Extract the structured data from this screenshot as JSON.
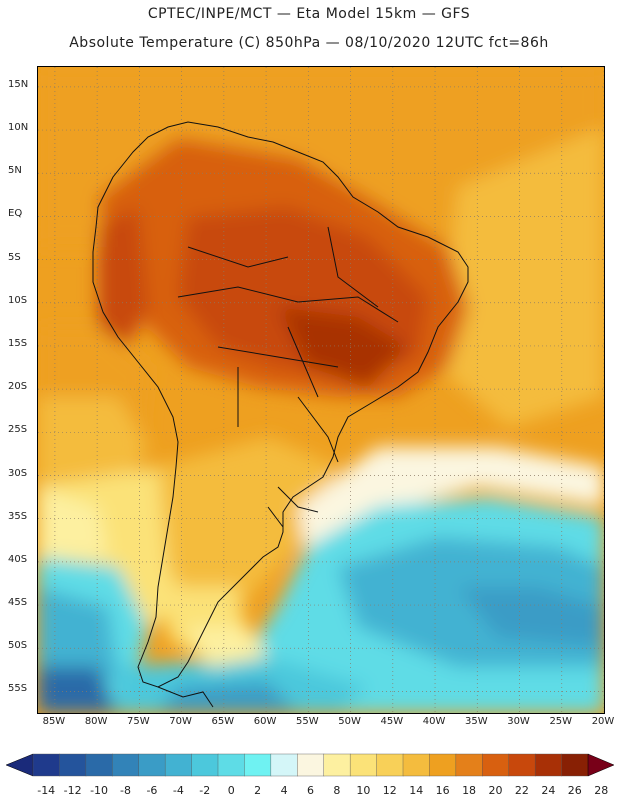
{
  "title": {
    "line1": "CPTEC/INPE/MCT —  Eta Model 15km — GFS",
    "line2": "Absolute Temperature (C) 850hPa — 08/10/2020 12UTC fct=86h"
  },
  "map": {
    "lat_labels": [
      "15N",
      "10N",
      "5N",
      "EQ",
      "5S",
      "10S",
      "15S",
      "20S",
      "25S",
      "30S",
      "35S",
      "40S",
      "45S",
      "50S",
      "55S"
    ],
    "lon_labels": [
      "85W",
      "80W",
      "75W",
      "70W",
      "65W",
      "60W",
      "55W",
      "50W",
      "45W",
      "40W",
      "35W",
      "30W",
      "25W",
      "20W"
    ],
    "lat_values": [
      15,
      10,
      5,
      0,
      -5,
      -10,
      -15,
      -20,
      -25,
      -30,
      -35,
      -40,
      -45,
      -50,
      -55
    ],
    "lon_values": [
      -85,
      -80,
      -75,
      -70,
      -65,
      -60,
      -55,
      -50,
      -45,
      -40,
      -35,
      -30,
      -25,
      -20
    ]
  },
  "colorbar": {
    "labels": [
      "-14",
      "-12",
      "-10",
      "-8",
      "-6",
      "-4",
      "-2",
      "0",
      "2",
      "4",
      "6",
      "8",
      "10",
      "12",
      "14",
      "16",
      "18",
      "20",
      "22",
      "24",
      "26",
      "28"
    ],
    "colors": [
      "#1f3a8c",
      "#24549c",
      "#2a6aa8",
      "#3283b8",
      "#3a9cc6",
      "#42b2d2",
      "#4cc8dc",
      "#5edce6",
      "#6ff2f2",
      "#d4f6f8",
      "#fbf6e0",
      "#fdf0a0",
      "#fbe278",
      "#f8d058",
      "#f4bc3e",
      "#eea020",
      "#e4801a",
      "#d86010",
      "#c8480c",
      "#a83006",
      "#882004"
    ],
    "under_color": "#1a2a7a",
    "over_color": "#780018"
  }
}
